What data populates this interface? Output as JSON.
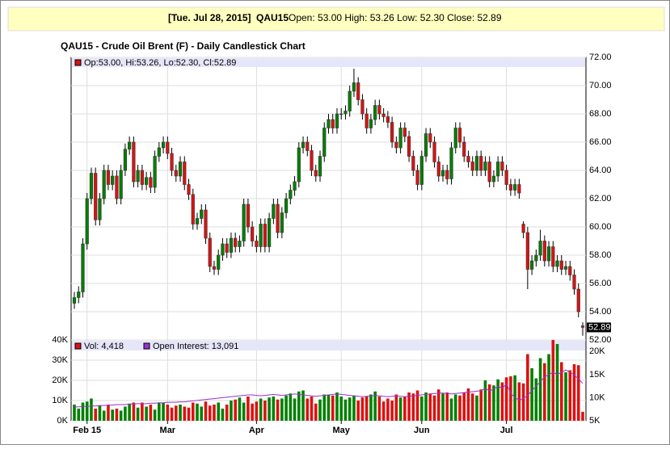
{
  "header": {
    "date": "[Tue. Jul 28, 2015]",
    "symbol": "QAU15",
    "quote": "Open: 53.00 High: 53.26 Low: 52.30 Close: 52.89"
  },
  "chart_data": [
    {
      "type": "candlestick",
      "title": "QAU15 - Crude Oil Brent (F) - Daily Candlestick Chart",
      "legend": "Op:53.00, Hi:53.26, Lo:52.30, Cl:52.89",
      "last_label": "52.89",
      "up_color": "#008000",
      "down_color": "#dd1111",
      "grid": true,
      "ylim": [
        52,
        72
      ],
      "yticks": [
        {
          "value": 72,
          "label": "72.00"
        },
        {
          "value": 70,
          "label": "70.00"
        },
        {
          "value": 68,
          "label": "68.00"
        },
        {
          "value": 66,
          "label": "66.00"
        },
        {
          "value": 64,
          "label": "64.00"
        },
        {
          "value": 62,
          "label": "62.00"
        },
        {
          "value": 60,
          "label": "60.00"
        },
        {
          "value": 58,
          "label": "58.00"
        },
        {
          "value": 56,
          "label": "56.00"
        },
        {
          "value": 54,
          "label": "54.00"
        },
        {
          "value": 52,
          "label": "52.00"
        }
      ],
      "xticks": [
        {
          "value": 3,
          "label": "Feb 15"
        },
        {
          "value": 22,
          "label": "Mar"
        },
        {
          "value": 43,
          "label": "Apr"
        },
        {
          "value": 63,
          "label": "May"
        },
        {
          "value": 82,
          "label": "Jun"
        },
        {
          "value": 102,
          "label": "Jul"
        }
      ],
      "ohlc": [
        [
          54.6,
          55.4,
          54.2,
          55.0
        ],
        [
          55.0,
          55.8,
          54.6,
          55.4
        ],
        [
          55.4,
          59.2,
          55.0,
          58.8
        ],
        [
          58.8,
          62.4,
          58.4,
          62.0
        ],
        [
          62.0,
          64.2,
          61.6,
          63.8
        ],
        [
          63.8,
          64.2,
          60.1,
          60.5
        ],
        [
          60.5,
          62.4,
          60.1,
          62.0
        ],
        [
          62.0,
          64.4,
          61.6,
          64.0
        ],
        [
          64.0,
          64.4,
          62.6,
          63.0
        ],
        [
          63.0,
          64.0,
          62.6,
          63.6
        ],
        [
          63.6,
          64.0,
          61.6,
          62.0
        ],
        [
          62.0,
          64.4,
          61.6,
          64.0
        ],
        [
          64.0,
          65.9,
          63.6,
          65.5
        ],
        [
          65.5,
          66.4,
          65.1,
          66.0
        ],
        [
          66.0,
          66.4,
          62.8,
          63.2
        ],
        [
          63.2,
          64.4,
          62.8,
          64.0
        ],
        [
          64.0,
          64.4,
          62.6,
          63.0
        ],
        [
          63.0,
          63.9,
          62.6,
          63.5
        ],
        [
          63.5,
          63.9,
          62.4,
          62.8
        ],
        [
          62.8,
          65.4,
          62.4,
          65.0
        ],
        [
          65.0,
          66.0,
          64.6,
          65.6
        ],
        [
          65.6,
          66.4,
          65.2,
          66.0
        ],
        [
          66.0,
          66.4,
          64.8,
          65.2
        ],
        [
          65.2,
          65.6,
          63.6,
          64.0
        ],
        [
          64.0,
          64.4,
          63.2,
          63.6
        ],
        [
          63.6,
          65.0,
          63.2,
          64.6
        ],
        [
          64.6,
          65.0,
          62.6,
          63.0
        ],
        [
          63.0,
          63.4,
          61.9,
          62.3
        ],
        [
          62.3,
          62.7,
          59.8,
          60.2
        ],
        [
          60.2,
          61.0,
          59.8,
          60.6
        ],
        [
          60.6,
          61.6,
          60.2,
          61.2
        ],
        [
          61.2,
          61.6,
          58.8,
          59.2
        ],
        [
          59.2,
          59.6,
          56.8,
          57.2
        ],
        [
          57.2,
          57.6,
          56.6,
          57.0
        ],
        [
          57.0,
          58.4,
          56.6,
          58.0
        ],
        [
          58.0,
          59.2,
          57.6,
          58.8
        ],
        [
          58.8,
          59.2,
          57.8,
          58.2
        ],
        [
          58.2,
          59.6,
          57.8,
          59.2
        ],
        [
          59.2,
          59.6,
          58.2,
          58.6
        ],
        [
          58.6,
          59.4,
          58.2,
          59.0
        ],
        [
          59.0,
          62.0,
          58.6,
          61.6
        ],
        [
          61.6,
          62.0,
          59.6,
          60.0
        ],
        [
          60.0,
          60.4,
          58.6,
          59.0
        ],
        [
          59.0,
          59.4,
          58.2,
          58.6
        ],
        [
          58.6,
          60.6,
          58.2,
          60.2
        ],
        [
          60.2,
          60.6,
          58.2,
          58.6
        ],
        [
          58.6,
          61.0,
          58.2,
          60.6
        ],
        [
          60.6,
          62.0,
          60.2,
          61.6
        ],
        [
          61.6,
          62.0,
          59.2,
          59.6
        ],
        [
          59.6,
          61.4,
          59.2,
          61.0
        ],
        [
          61.0,
          62.4,
          60.6,
          62.0
        ],
        [
          62.0,
          63.0,
          61.6,
          62.6
        ],
        [
          62.6,
          63.6,
          62.2,
          63.2
        ],
        [
          63.2,
          66.0,
          62.8,
          65.6
        ],
        [
          65.6,
          66.4,
          65.2,
          66.0
        ],
        [
          66.0,
          66.4,
          65.0,
          65.4
        ],
        [
          65.4,
          65.8,
          63.6,
          64.0
        ],
        [
          64.0,
          64.4,
          63.2,
          63.6
        ],
        [
          63.6,
          65.4,
          63.2,
          65.0
        ],
        [
          65.0,
          67.4,
          64.6,
          67.0
        ],
        [
          67.0,
          68.0,
          66.6,
          67.6
        ],
        [
          67.6,
          68.0,
          66.6,
          67.0
        ],
        [
          67.0,
          68.4,
          66.6,
          68.0
        ],
        [
          68.0,
          68.4,
          67.6,
          68.0
        ],
        [
          68.0,
          68.6,
          67.6,
          68.2
        ],
        [
          68.2,
          70.0,
          67.8,
          69.6
        ],
        [
          69.6,
          71.2,
          69.2,
          70.2
        ],
        [
          70.2,
          70.6,
          68.6,
          69.0
        ],
        [
          69.0,
          69.4,
          67.6,
          68.0
        ],
        [
          68.0,
          68.4,
          66.6,
          67.0
        ],
        [
          67.0,
          68.0,
          66.6,
          67.6
        ],
        [
          67.6,
          69.0,
          67.2,
          68.6
        ],
        [
          68.6,
          69.0,
          67.6,
          68.0
        ],
        [
          68.0,
          68.4,
          67.4,
          67.8
        ],
        [
          67.8,
          68.2,
          67.0,
          67.4
        ],
        [
          67.4,
          67.8,
          65.6,
          66.0
        ],
        [
          66.0,
          66.4,
          65.2,
          65.6
        ],
        [
          65.6,
          67.4,
          65.2,
          67.0
        ],
        [
          67.0,
          67.4,
          66.0,
          66.4
        ],
        [
          66.4,
          66.8,
          64.6,
          65.0
        ],
        [
          65.0,
          65.4,
          63.6,
          64.0
        ],
        [
          64.0,
          64.4,
          62.6,
          63.0
        ],
        [
          63.0,
          65.4,
          62.6,
          65.0
        ],
        [
          65.0,
          67.0,
          64.6,
          66.6
        ],
        [
          66.6,
          67.0,
          65.6,
          66.0
        ],
        [
          66.0,
          66.4,
          64.2,
          64.6
        ],
        [
          64.6,
          65.0,
          63.2,
          63.6
        ],
        [
          63.6,
          64.4,
          63.2,
          64.0
        ],
        [
          64.0,
          64.4,
          63.0,
          63.4
        ],
        [
          63.4,
          66.0,
          63.0,
          65.6
        ],
        [
          65.6,
          67.4,
          65.2,
          67.0
        ],
        [
          67.0,
          67.4,
          65.6,
          66.0
        ],
        [
          66.0,
          66.4,
          64.6,
          65.0
        ],
        [
          65.0,
          65.4,
          64.2,
          64.6
        ],
        [
          64.6,
          65.0,
          63.6,
          64.0
        ],
        [
          64.0,
          65.4,
          63.6,
          65.0
        ],
        [
          65.0,
          65.4,
          63.6,
          64.0
        ],
        [
          64.0,
          65.0,
          63.6,
          64.6
        ],
        [
          64.6,
          65.0,
          62.8,
          63.2
        ],
        [
          63.2,
          64.0,
          62.8,
          63.6
        ],
        [
          63.6,
          65.0,
          63.2,
          64.6
        ],
        [
          64.6,
          65.0,
          63.6,
          64.0
        ],
        [
          64.0,
          64.4,
          62.6,
          63.0
        ],
        [
          63.0,
          63.4,
          62.2,
          62.6
        ],
        [
          62.6,
          63.4,
          62.2,
          63.0
        ],
        [
          63.0,
          63.4,
          62.0,
          62.4
        ],
        [
          60.2,
          60.4,
          59.2,
          59.6
        ],
        [
          59.6,
          60.0,
          55.6,
          57.0
        ],
        [
          57.0,
          58.0,
          56.6,
          57.6
        ],
        [
          57.6,
          58.4,
          57.2,
          58.0
        ],
        [
          58.0,
          59.8,
          57.6,
          59.0
        ],
        [
          59.0,
          59.4,
          57.2,
          57.6
        ],
        [
          57.6,
          59.0,
          57.2,
          58.6
        ],
        [
          58.6,
          59.0,
          56.8,
          57.2
        ],
        [
          57.2,
          58.0,
          56.8,
          57.6
        ],
        [
          57.6,
          58.0,
          56.6,
          57.0
        ],
        [
          57.0,
          57.6,
          56.6,
          57.2
        ],
        [
          57.2,
          57.6,
          56.2,
          56.6
        ],
        [
          56.6,
          57.0,
          55.2,
          55.6
        ],
        [
          55.6,
          56.0,
          53.6,
          54.0
        ],
        [
          53.0,
          53.26,
          52.3,
          52.89
        ]
      ]
    },
    {
      "type": "volume",
      "legend_volume": "Vol: 4,418",
      "legend_oi": "Open Interest: 13,091",
      "grid": true,
      "ylim": [
        0,
        40000
      ],
      "yticks": [
        {
          "value": 0,
          "label": "0K"
        },
        {
          "value": 10000,
          "label": "10K"
        },
        {
          "value": 20000,
          "label": "20K"
        },
        {
          "value": 30000,
          "label": "30K"
        },
        {
          "value": 40000,
          "label": "40K"
        }
      ],
      "y2lim": [
        5000,
        22500
      ],
      "y2ticks": [
        {
          "value": 5000,
          "label": "5K"
        },
        {
          "value": 10000,
          "label": "10K"
        },
        {
          "value": 15000,
          "label": "15K"
        },
        {
          "value": 20000,
          "label": "20K"
        }
      ],
      "series": [
        {
          "name": "Vol",
          "values": [
            8000,
            6000,
            9000,
            9500,
            11000,
            6000,
            7500,
            5000,
            8000,
            5500,
            6000,
            5000,
            7000,
            8500,
            9000,
            6500,
            9000,
            7000,
            8000,
            5500,
            9000,
            9000,
            8000,
            6500,
            7500,
            8000,
            7000,
            6500,
            9000,
            8500,
            7000,
            9500,
            7500,
            8000,
            9000,
            6000,
            8000,
            10000,
            10500,
            11500,
            9000,
            12000,
            8500,
            9500,
            11000,
            10000,
            11500,
            12000,
            10500,
            11000,
            12500,
            13500,
            11000,
            14500,
            15000,
            11000,
            12000,
            8500,
            10500,
            13000,
            13000,
            12500,
            14000,
            12000,
            10500,
            11500,
            12500,
            10000,
            11500,
            12000,
            13000,
            14500,
            12000,
            9500,
            11000,
            10000,
            13000,
            11500,
            12000,
            14000,
            13500,
            15000,
            12000,
            14000,
            13500,
            12500,
            15500,
            13500,
            14000,
            11000,
            13000,
            12500,
            14000,
            16000,
            13500,
            12500,
            15500,
            20000,
            18000,
            17500,
            20500,
            19000,
            21500,
            22000,
            22500,
            19000,
            18500,
            33000,
            26000,
            21000,
            31000,
            28500,
            33000,
            40000,
            38000,
            29000,
            24000,
            25000,
            28000,
            27500,
            4418
          ]
        },
        {
          "name": "Open Interest",
          "color": "#9933cc",
          "axis": "y2",
          "values": [
            8000,
            8000,
            8100,
            8100,
            8200,
            8200,
            8300,
            8300,
            8400,
            8400,
            8500,
            8500,
            8500,
            8600,
            8600,
            8700,
            8700,
            8700,
            8800,
            8800,
            8900,
            8900,
            9000,
            9000,
            9000,
            9100,
            9100,
            9200,
            9300,
            9400,
            9500,
            9600,
            9700,
            9800,
            9900,
            10000,
            10100,
            10200,
            10300,
            10400,
            10500,
            10600,
            10600,
            10500,
            10400,
            10500,
            10600,
            10700,
            10600,
            10500,
            10600,
            10700,
            10800,
            10700,
            10600,
            10500,
            10400,
            10300,
            10400,
            10500,
            10600,
            10700,
            10800,
            10700,
            10600,
            10500,
            10400,
            10300,
            10200,
            10300,
            10400,
            10500,
            10400,
            10300,
            10200,
            10300,
            10400,
            10300,
            10200,
            10300,
            10400,
            10500,
            10600,
            10700,
            10800,
            10900,
            11000,
            11000,
            10900,
            10800,
            10900,
            11000,
            11100,
            11200,
            11300,
            11400,
            11500,
            12000,
            11500,
            11800,
            12500,
            12000,
            13000,
            11000,
            10000,
            9500,
            9800,
            10500,
            11500,
            12500,
            13500,
            14500,
            15000,
            15500,
            15000,
            15500,
            16000,
            15500,
            15000,
            14000,
            13091
          ]
        }
      ]
    }
  ]
}
